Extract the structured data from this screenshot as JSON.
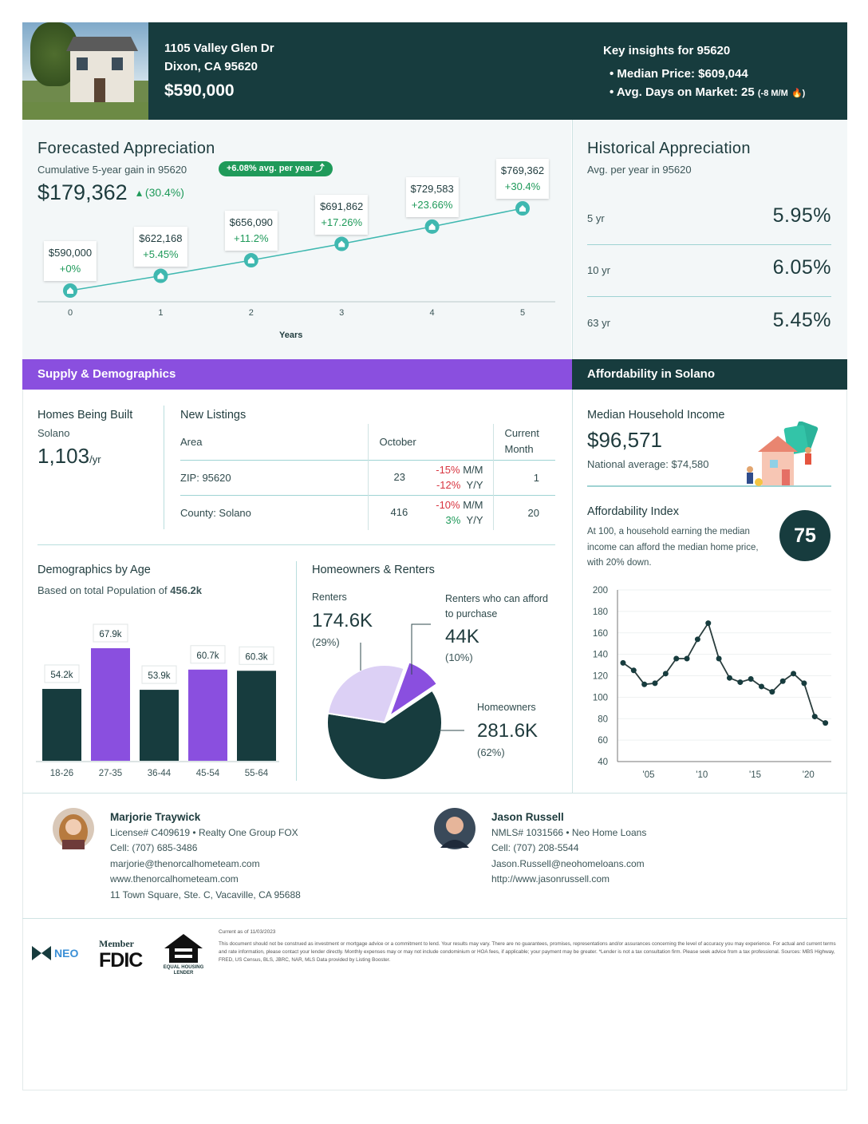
{
  "header": {
    "address1": "1105 Valley Glen Dr",
    "address2": "Dixon, CA 95620",
    "price": "$590,000",
    "insights_title": "Key insights for 95620",
    "median_price": "• Median Price: $609,044",
    "days_on_market": "• Avg. Days on Market: 25",
    "dom_change": "(-8 M/M",
    "dom_icon": "fire-icon",
    "dom_close": ")"
  },
  "forecast": {
    "title": "Forecasted Appreciation",
    "subtitle": "Cumulative 5-year gain in 95620",
    "badge": "+6.08% avg. per year",
    "gain": "$179,362",
    "gain_pct": "▴ (30.4%)",
    "xlabel": "Years",
    "chart_data": {
      "type": "line",
      "x": [
        0,
        1,
        2,
        3,
        4,
        5
      ],
      "values": [
        590000,
        622168,
        656090,
        691862,
        729583,
        769362
      ],
      "labels": [
        "$590,000",
        "$622,168",
        "$656,090",
        "$691,862",
        "$729,583",
        "$769,362"
      ],
      "changes": [
        "+0%",
        "+5.45%",
        "+11.2%",
        "+17.26%",
        "+23.66%",
        "+30.4%"
      ],
      "xlabel": "Years",
      "color": "#3fb8b0"
    }
  },
  "historical": {
    "title": "Historical Appreciation",
    "subtitle": "Avg. per year in 95620",
    "rows": [
      {
        "k": "5 yr",
        "v": "5.95%"
      },
      {
        "k": "10 yr",
        "v": "6.05%"
      },
      {
        "k": "63 yr",
        "v": "5.45%"
      }
    ]
  },
  "supply": {
    "title": "Supply & Demographics",
    "homes_built_title": "Homes Being Built",
    "homes_built_area": "Solano",
    "homes_built_value": "1,103",
    "homes_built_unit": "/yr",
    "listings_title": "New Listings",
    "cols": [
      "Area",
      "October",
      "Current Month"
    ],
    "rows": [
      {
        "area": "ZIP: 95620",
        "oct": "23",
        "mm": "-15%",
        "mm_l": "M/M",
        "yy": "-12%",
        "yy_l": "Y/Y",
        "cur": "1"
      },
      {
        "area": "County: Solano",
        "oct": "416",
        "mm": "-10%",
        "mm_l": "M/M",
        "yy": "3%",
        "yy_l": "Y/Y",
        "cur": "20"
      }
    ]
  },
  "demographics": {
    "title": "Demographics by Age",
    "subtitle": "Based on total Population of",
    "population": "456.2k",
    "chart_data": {
      "type": "bar",
      "categories": [
        "18-26",
        "27-35",
        "36-44",
        "45-54",
        "55-64"
      ],
      "values": [
        54.2,
        67.9,
        53.9,
        60.7,
        60.3
      ],
      "labels": [
        "54.2k",
        "67.9k",
        "53.9k",
        "60.7k",
        "60.3k"
      ],
      "colors": [
        "#173c3e",
        "#8a4fdf",
        "#173c3e",
        "#8a4fdf",
        "#173c3e"
      ],
      "ylim": [
        30,
        70
      ]
    }
  },
  "owners": {
    "title": "Homeowners & Renters",
    "renters_label": "Renters",
    "renters_value": "174.6K",
    "renters_pct": "(29%)",
    "afford_label": "Renters who can afford to purchase",
    "afford_value": "44K",
    "afford_pct": "(10%)",
    "owners_label": "Homeowners",
    "owners_value": "281.6K",
    "owners_pct": "(62%)",
    "chart_data": {
      "type": "pie",
      "slices": [
        {
          "name": "Renters who can afford to purchase",
          "pct": 10,
          "color": "#8a4fdf"
        },
        {
          "name": "Homeowners",
          "pct": 62,
          "color": "#173c3e"
        },
        {
          "name": "Renters",
          "pct": 28,
          "color": "#dcd0f5"
        }
      ]
    }
  },
  "afford": {
    "title": "Affordability in Solano",
    "income_title": "Median Household Income",
    "income": "$96,571",
    "national": "National average: $74,580",
    "index_title": "Affordability Index",
    "index_desc": "At 100, a household earning the median income can afford the median home price, with 20% down.",
    "index_value": "75",
    "chart_data": {
      "type": "line",
      "x": [
        2003,
        2004,
        2005,
        2006,
        2007,
        2008,
        2009,
        2010,
        2011,
        2012,
        2013,
        2014,
        2015,
        2016,
        2017,
        2018,
        2019,
        2020,
        2021,
        2022
      ],
      "values": [
        132,
        125,
        112,
        113,
        122,
        136,
        136,
        154,
        169,
        136,
        118,
        114,
        117,
        110,
        105,
        115,
        122,
        113,
        82,
        76
      ],
      "yticks": [
        200,
        180,
        160,
        140,
        120,
        100,
        80,
        60,
        40
      ],
      "xticks": [
        "'05",
        "'10",
        "'15",
        "'20"
      ],
      "ylim": [
        40,
        200
      ],
      "grid": true
    }
  },
  "contacts": [
    {
      "name": "Marjorie Traywick",
      "line1": "License# C409619 • Realty One Group FOX",
      "line2": "Cell: (707) 685-3486",
      "line3": "marjorie@thenorcalhometeam.com",
      "line4": "www.thenorcalhometeam.com",
      "line5": "11 Town Square, Ste. C, Vacaville, CA 95688"
    },
    {
      "name": "Jason Russell",
      "line1": "NMLS# 1031566 • Neo Home Loans",
      "line2": "Cell: (707) 208-5544",
      "line3": "Jason.Russell@neohomeloans.com",
      "line4": "http://www.jasonrussell.com"
    }
  ],
  "footer": {
    "neo_logo": "NEO",
    "fdic_top": "Member",
    "fdic": "FDIC",
    "ehl": "EQUAL HOUSING LENDER",
    "asof": "Current as of 11/03/2023",
    "disclaimer": "This document should not be construed as investment or mortgage advice or a commitment to lend. Your results may vary. There are no guarantees, promises, representations and/or assurances concerning the level of accuracy you may experience. For actual and current terms and rate information, please contact your lender directly. Monthly expenses may or may not include condominium or HOA fees, if applicable; your payment may be greater. *Lender is not a tax consultation firm. Please seek advice from a tax professional. Sources: MBS Highway, FRED, US Census, BLS, JBRC, NAR, MLS Data provided by Listing Booster."
  }
}
